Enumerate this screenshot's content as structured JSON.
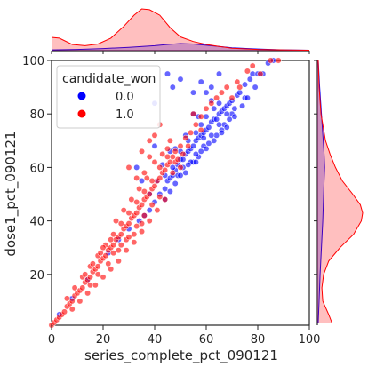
{
  "chart_data": {
    "type": "scatter",
    "subtype": "jointplot",
    "xlabel": "series_complete_pct_090121",
    "ylabel": "dose1_pct_090121",
    "xlim": [
      0,
      100
    ],
    "ylim": [
      1,
      100
    ],
    "x_ticks": [
      "0",
      "20",
      "40",
      "60",
      "80",
      "100"
    ],
    "y_ticks": [
      "20",
      "40",
      "60",
      "80",
      "100"
    ],
    "legend": {
      "title": "candidate_won",
      "position": "top-left",
      "entries": [
        "0.0",
        "1.0"
      ]
    },
    "series": [
      {
        "name": "0.0",
        "color": "#0000ff",
        "points": [
          [
            3,
            5
          ],
          [
            8,
            11
          ],
          [
            14,
            18
          ],
          [
            22,
            28
          ],
          [
            26,
            33
          ],
          [
            30,
            37
          ],
          [
            34,
            40
          ],
          [
            38,
            44
          ],
          [
            40,
            47
          ],
          [
            42,
            50
          ],
          [
            44,
            52
          ],
          [
            45,
            55
          ],
          [
            46,
            56
          ],
          [
            47,
            57
          ],
          [
            48,
            59
          ],
          [
            49,
            61
          ],
          [
            50,
            63
          ],
          [
            51,
            63
          ],
          [
            52,
            65
          ],
          [
            53,
            66
          ],
          [
            54,
            67
          ],
          [
            55,
            68
          ],
          [
            56,
            70
          ],
          [
            57,
            71
          ],
          [
            58,
            72
          ],
          [
            59,
            73
          ],
          [
            60,
            74
          ],
          [
            61,
            75
          ],
          [
            62,
            77
          ],
          [
            63,
            78
          ],
          [
            64,
            78
          ],
          [
            65,
            80
          ],
          [
            66,
            81
          ],
          [
            67,
            82
          ],
          [
            68,
            83
          ],
          [
            69,
            84
          ],
          [
            70,
            85
          ],
          [
            72,
            87
          ],
          [
            73,
            88
          ],
          [
            75,
            91
          ],
          [
            77,
            93
          ],
          [
            78,
            95
          ],
          [
            80,
            95
          ],
          [
            84,
            99
          ],
          [
            86,
            100
          ],
          [
            38,
            50
          ],
          [
            41,
            55
          ],
          [
            44,
            57
          ],
          [
            47,
            60
          ],
          [
            50,
            66
          ],
          [
            53,
            70
          ],
          [
            56,
            73
          ],
          [
            58,
            76
          ],
          [
            60,
            79
          ],
          [
            63,
            82
          ],
          [
            65,
            84
          ],
          [
            62,
            90
          ],
          [
            55,
            80
          ],
          [
            46,
            66
          ],
          [
            36,
            42
          ],
          [
            44,
            48
          ],
          [
            48,
            54
          ],
          [
            52,
            58
          ],
          [
            55,
            62
          ],
          [
            58,
            66
          ],
          [
            61,
            69
          ],
          [
            64,
            72
          ],
          [
            67,
            76
          ],
          [
            70,
            80
          ],
          [
            71,
            82
          ],
          [
            35,
            55
          ],
          [
            33,
            60
          ],
          [
            40,
            68
          ],
          [
            56,
            62
          ],
          [
            59,
            68
          ],
          [
            66,
            74
          ],
          [
            69,
            78
          ],
          [
            75,
            86
          ],
          [
            43,
            61
          ],
          [
            48,
            67
          ],
          [
            52,
            72
          ],
          [
            57,
            79
          ],
          [
            62,
            85
          ],
          [
            46,
            51
          ],
          [
            49,
            57
          ],
          [
            51,
            60
          ],
          [
            54,
            62
          ],
          [
            57,
            64
          ],
          [
            60,
            67
          ],
          [
            63,
            70
          ],
          [
            66,
            73
          ],
          [
            68,
            75
          ],
          [
            71,
            79
          ],
          [
            74,
            83
          ],
          [
            76,
            86
          ],
          [
            79,
            90
          ],
          [
            82,
            95
          ],
          [
            50,
            57
          ],
          [
            53,
            61
          ],
          [
            56,
            65
          ],
          [
            59,
            71
          ],
          [
            62,
            72
          ],
          [
            65,
            76
          ],
          [
            68,
            80
          ],
          [
            45,
            95
          ],
          [
            65,
            95
          ],
          [
            47,
            90
          ],
          [
            50,
            93
          ],
          [
            55,
            88
          ],
          [
            60,
            88
          ],
          [
            58,
            92
          ],
          [
            40,
            84
          ]
        ]
      },
      {
        "name": "1.0",
        "color": "#ff0000",
        "points": [
          [
            0,
            1
          ],
          [
            1,
            2
          ],
          [
            2,
            3
          ],
          [
            3,
            4
          ],
          [
            4,
            5
          ],
          [
            5,
            6
          ],
          [
            6,
            8
          ],
          [
            7,
            9
          ],
          [
            8,
            10
          ],
          [
            9,
            12
          ],
          [
            10,
            13
          ],
          [
            11,
            14
          ],
          [
            12,
            15
          ],
          [
            13,
            17
          ],
          [
            14,
            18
          ],
          [
            15,
            19
          ],
          [
            16,
            21
          ],
          [
            17,
            22
          ],
          [
            18,
            23
          ],
          [
            19,
            25
          ],
          [
            20,
            26
          ],
          [
            21,
            27
          ],
          [
            22,
            29
          ],
          [
            23,
            30
          ],
          [
            24,
            31
          ],
          [
            25,
            33
          ],
          [
            26,
            34
          ],
          [
            27,
            35
          ],
          [
            28,
            37
          ],
          [
            29,
            38
          ],
          [
            30,
            39
          ],
          [
            31,
            41
          ],
          [
            32,
            42
          ],
          [
            33,
            43
          ],
          [
            34,
            45
          ],
          [
            35,
            46
          ],
          [
            36,
            48
          ],
          [
            37,
            49
          ],
          [
            38,
            50
          ],
          [
            39,
            52
          ],
          [
            40,
            53
          ],
          [
            41,
            55
          ],
          [
            42,
            56
          ],
          [
            43,
            58
          ],
          [
            44,
            59
          ],
          [
            45,
            61
          ],
          [
            46,
            62
          ],
          [
            47,
            64
          ],
          [
            48,
            66
          ],
          [
            50,
            68
          ],
          [
            52,
            71
          ],
          [
            54,
            73
          ],
          [
            56,
            76
          ],
          [
            58,
            79
          ],
          [
            60,
            82
          ],
          [
            62,
            84
          ],
          [
            64,
            86
          ],
          [
            66,
            88
          ],
          [
            68,
            90
          ],
          [
            72,
            92
          ],
          [
            76,
            96
          ],
          [
            85,
            100
          ],
          [
            88,
            100
          ],
          [
            6,
            11
          ],
          [
            9,
            15
          ],
          [
            12,
            19
          ],
          [
            15,
            23
          ],
          [
            18,
            27
          ],
          [
            21,
            31
          ],
          [
            24,
            35
          ],
          [
            27,
            39
          ],
          [
            30,
            43
          ],
          [
            33,
            47
          ],
          [
            36,
            51
          ],
          [
            39,
            55
          ],
          [
            42,
            60
          ],
          [
            45,
            64
          ],
          [
            8,
            7
          ],
          [
            11,
            10
          ],
          [
            14,
            13
          ],
          [
            17,
            16
          ],
          [
            20,
            19
          ],
          [
            23,
            22
          ],
          [
            26,
            25
          ],
          [
            29,
            29
          ],
          [
            32,
            32
          ],
          [
            35,
            36
          ],
          [
            38,
            40
          ],
          [
            41,
            44
          ],
          [
            44,
            48
          ],
          [
            25,
            40
          ],
          [
            28,
            44
          ],
          [
            31,
            48
          ],
          [
            34,
            52
          ],
          [
            37,
            56
          ],
          [
            40,
            62
          ],
          [
            43,
            65
          ],
          [
            46,
            70
          ],
          [
            30,
            60
          ],
          [
            35,
            66
          ],
          [
            38,
            70
          ],
          [
            48,
            62
          ],
          [
            26,
            29
          ],
          [
            29,
            33
          ],
          [
            32,
            35
          ],
          [
            35,
            39
          ],
          [
            22,
            24
          ],
          [
            18,
            20
          ],
          [
            15,
            16
          ],
          [
            24,
            28
          ],
          [
            27,
            31
          ],
          [
            30,
            34
          ],
          [
            33,
            38
          ],
          [
            36,
            42
          ],
          [
            39,
            46
          ],
          [
            42,
            49
          ],
          [
            20,
            30
          ],
          [
            23,
            33
          ],
          [
            19,
            28
          ],
          [
            16,
            24
          ],
          [
            13,
            20
          ],
          [
            38,
            64
          ],
          [
            40,
            72
          ],
          [
            42,
            76
          ],
          [
            55,
            80
          ],
          [
            58,
            74
          ],
          [
            50,
            60
          ],
          [
            70,
            86
          ],
          [
            78,
            98
          ],
          [
            81,
            95
          ],
          [
            73,
            90
          ],
          [
            33,
            56
          ],
          [
            36,
            58
          ],
          [
            45,
            67
          ],
          [
            47,
            58
          ],
          [
            49,
            63
          ],
          [
            51,
            65
          ],
          [
            53,
            68
          ]
        ]
      }
    ],
    "marginal_x_kde": {
      "0.0": [
        [
          0,
          0.02
        ],
        [
          10,
          0.03
        ],
        [
          20,
          0.05
        ],
        [
          30,
          0.08
        ],
        [
          40,
          0.12
        ],
        [
          45,
          0.15
        ],
        [
          50,
          0.17
        ],
        [
          55,
          0.16
        ],
        [
          60,
          0.13
        ],
        [
          65,
          0.1
        ],
        [
          70,
          0.07
        ],
        [
          80,
          0.04
        ],
        [
          90,
          0.02
        ],
        [
          100,
          0.01
        ]
      ],
      "1.0": [
        [
          0,
          0.32
        ],
        [
          3,
          0.3
        ],
        [
          8,
          0.15
        ],
        [
          13,
          0.12
        ],
        [
          18,
          0.16
        ],
        [
          23,
          0.3
        ],
        [
          28,
          0.58
        ],
        [
          32,
          0.85
        ],
        [
          35,
          1.0
        ],
        [
          38,
          0.98
        ],
        [
          42,
          0.85
        ],
        [
          46,
          0.55
        ],
        [
          50,
          0.33
        ],
        [
          55,
          0.22
        ],
        [
          60,
          0.15
        ],
        [
          65,
          0.1
        ],
        [
          70,
          0.06
        ],
        [
          80,
          0.03
        ],
        [
          90,
          0.02
        ],
        [
          100,
          0.01
        ]
      ]
    },
    "marginal_y_kde": {
      "0.0": [
        [
          2,
          0.02
        ],
        [
          10,
          0.04
        ],
        [
          20,
          0.06
        ],
        [
          30,
          0.09
        ],
        [
          40,
          0.12
        ],
        [
          50,
          0.14
        ],
        [
          55,
          0.15
        ],
        [
          60,
          0.16
        ],
        [
          65,
          0.15
        ],
        [
          70,
          0.13
        ],
        [
          80,
          0.09
        ],
        [
          90,
          0.05
        ],
        [
          100,
          0.02
        ]
      ],
      "1.0": [
        [
          2,
          0.32
        ],
        [
          5,
          0.25
        ],
        [
          10,
          0.12
        ],
        [
          15,
          0.1
        ],
        [
          20,
          0.14
        ],
        [
          25,
          0.25
        ],
        [
          30,
          0.5
        ],
        [
          35,
          0.8
        ],
        [
          40,
          0.97
        ],
        [
          43,
          1.0
        ],
        [
          46,
          0.95
        ],
        [
          50,
          0.78
        ],
        [
          55,
          0.55
        ],
        [
          60,
          0.4
        ],
        [
          65,
          0.28
        ],
        [
          70,
          0.18
        ],
        [
          80,
          0.08
        ],
        [
          90,
          0.04
        ],
        [
          100,
          0.02
        ]
      ]
    }
  }
}
